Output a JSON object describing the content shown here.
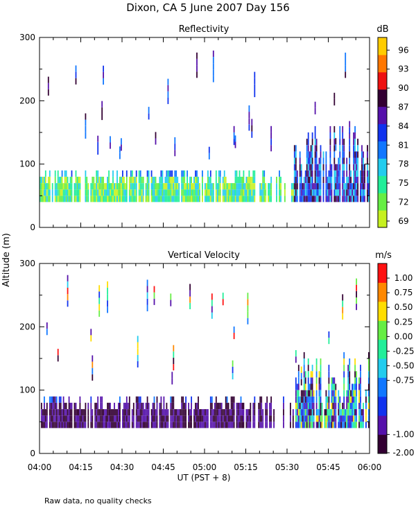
{
  "figure": {
    "title": "Dixon, CA   5 June 2007   Day 156",
    "xlabel": "UT   (PST + 8)",
    "ylabel": "Altitude  (m)",
    "footnote": "Raw data, no quality checks"
  },
  "chart_data": [
    {
      "type": "heatmap",
      "title": "Reflectivity",
      "xlabel": "UT   (PST + 8)",
      "ylabel": "Altitude  (m)",
      "x_ticks": [
        "04:00",
        "04:15",
        "04:30",
        "04:45",
        "05:00",
        "05:15",
        "05:30",
        "05:45",
        "06:00"
      ],
      "xlim_minutes_after_0400": [
        0,
        120
      ],
      "y_ticks": [
        0,
        100,
        200,
        300
      ],
      "ylim": [
        0,
        300
      ],
      "colorbar": {
        "unit": "dB",
        "labels": [
          "96",
          "93",
          "90",
          "87",
          "84",
          "81",
          "78",
          "75",
          "72",
          "69"
        ],
        "min": 68,
        "max": 98,
        "colors": [
          "#c6f020",
          "#66ee44",
          "#22ee99",
          "#22ccee",
          "#1177ff",
          "#1133ee",
          "#5511aa",
          "#330033",
          "#ee1111",
          "#ff7700",
          "#ffcc00"
        ]
      }
    },
    {
      "type": "heatmap",
      "title": "Vertical Velocity",
      "xlabel": "UT   (PST + 8)",
      "ylabel": "Altitude  (m)",
      "x_ticks": [
        "04:00",
        "04:15",
        "04:30",
        "04:45",
        "05:00",
        "05:15",
        "05:30",
        "05:45",
        "06:00"
      ],
      "xlim_minutes_after_0400": [
        0,
        120
      ],
      "y_ticks": [
        0,
        100,
        200,
        300
      ],
      "ylim": [
        0,
        300
      ],
      "colorbar": {
        "unit": "m/s",
        "labels": [
          "1.00",
          "0.75",
          "0.50",
          "0.25",
          "0.00",
          "-0.25",
          "-0.50",
          "-0.75",
          "-1.00",
          "-2.00"
        ],
        "min": -2.0,
        "max": 1.25,
        "colors": [
          "#330033",
          "#5511aa",
          "#1133ee",
          "#1177ff",
          "#22ccee",
          "#22ee99",
          "#66ee44",
          "#ffdd00",
          "#ff8800",
          "#ff1111"
        ]
      }
    }
  ]
}
